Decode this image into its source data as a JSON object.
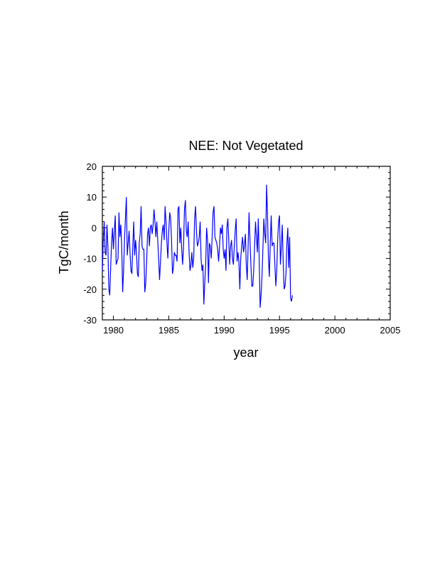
{
  "chart_data": {
    "type": "line",
    "title": "NEE: Not Vegetated",
    "xlabel": "year",
    "ylabel": "TgC/month",
    "xlim": [
      1979,
      2005
    ],
    "ylim": [
      -30,
      20
    ],
    "x_ticks": [
      1980,
      1985,
      1990,
      1995,
      2000,
      2005
    ],
    "y_ticks": [
      -30,
      -20,
      -10,
      0,
      10,
      20
    ],
    "grid": false,
    "line_color": "#0000ff",
    "series": [
      {
        "x_start": 1979.0,
        "step": 0.0833333,
        "values": [
          -14,
          -4,
          2,
          -8,
          -9,
          1,
          -6,
          -20,
          -22,
          -13,
          -5,
          0,
          -7,
          -1,
          4,
          -12,
          -11,
          -10,
          5,
          -3,
          1,
          -6,
          -21,
          -14,
          -4,
          3,
          10,
          -9,
          -5,
          -1,
          -8,
          -14,
          -15,
          -6,
          2,
          -9,
          -4,
          -8,
          -15,
          -16,
          -5,
          -2,
          7,
          -6,
          -7,
          -7,
          -21,
          -18,
          -11,
          -2,
          0,
          -6,
          0,
          1,
          -2,
          1,
          6,
          2,
          -3,
          2,
          -4,
          -10,
          -17,
          -11,
          -5,
          -1,
          1,
          -4,
          7,
          2,
          -5,
          -10,
          -1,
          5,
          3,
          -4,
          -15,
          -13,
          -8,
          -9,
          -9,
          -11,
          6,
          7,
          -5,
          0,
          -7,
          -12,
          -6,
          6,
          9,
          -1,
          -3,
          2,
          -8,
          -14,
          -12,
          -8,
          -13,
          -10,
          3,
          7,
          -1,
          -6,
          -5,
          -3,
          2,
          -10,
          -14,
          -12,
          -25,
          -18,
          -12,
          0,
          -4,
          -18,
          -5,
          -6,
          -10,
          -3,
          5,
          7,
          -3,
          -4,
          -5,
          -7,
          -11,
          -6,
          0,
          -2,
          1,
          -7,
          -10,
          -7,
          -14,
          0,
          3,
          -4,
          -12,
          -6,
          -4,
          -10,
          -12,
          -6,
          -1,
          3,
          -11,
          -8,
          -11,
          -20,
          -10,
          -6,
          -3,
          -8,
          -6,
          -2,
          -12,
          -17,
          -6,
          5,
          -4,
          -12,
          -19,
          -19,
          -14,
          -6,
          2,
          -3,
          -8,
          3,
          -10,
          -26,
          -22,
          -16,
          -7,
          3,
          -2,
          -5,
          14,
          4,
          -10,
          -16,
          -5,
          4,
          -6,
          -5,
          -5,
          -12,
          -19,
          -14,
          -4,
          2,
          4,
          -12,
          -6,
          1,
          -11,
          -20,
          -19,
          -15,
          -5,
          0,
          -13,
          -3,
          -23,
          -24,
          -22
        ]
      }
    ]
  }
}
